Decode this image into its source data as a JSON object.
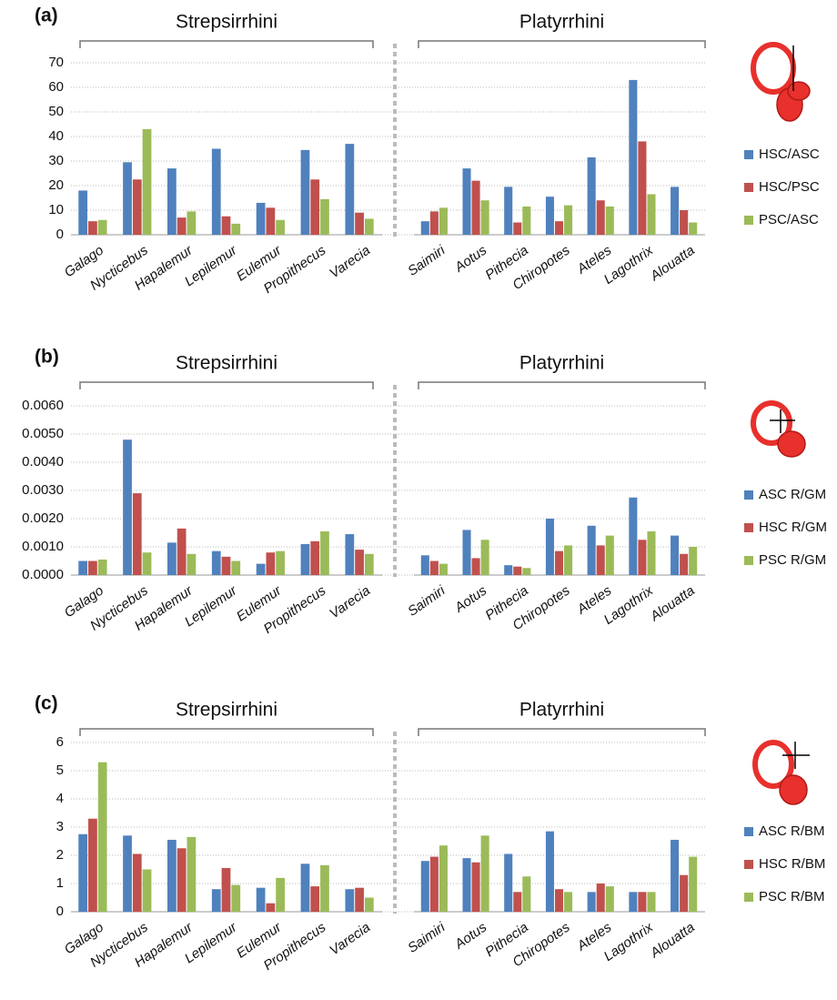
{
  "chart_data": [
    {
      "type": "bar",
      "panel_label": "(a)",
      "groups": [
        "Strepsirrhini",
        "Platyrrhini"
      ],
      "categories": [
        "Galago",
        "Nycticebus",
        "Hapalemur",
        "Lepilemur",
        "Eulemur",
        "Propithecus",
        "Varecia",
        "Saimiri",
        "Aotus",
        "Pithecia",
        "Chiropotes",
        "Ateles",
        "Lagothrix",
        "Alouatta"
      ],
      "series": [
        {
          "name": "HSC/ASC",
          "color": "#4f81bd",
          "values": [
            18,
            29.5,
            27,
            35,
            13,
            34.5,
            37,
            5.5,
            27,
            19.5,
            15.5,
            31.5,
            63,
            19.5
          ]
        },
        {
          "name": "HSC/PSC",
          "color": "#c0504d",
          "values": [
            5.5,
            22.5,
            7,
            7.5,
            11,
            22.5,
            9,
            9.5,
            22,
            5,
            5.5,
            14,
            38,
            10
          ]
        },
        {
          "name": "PSC/ASC",
          "color": "#9bbb59",
          "values": [
            6,
            43,
            9.5,
            4.5,
            6,
            14.5,
            6.5,
            11,
            14,
            11.5,
            12,
            11.5,
            16.5,
            5
          ]
        }
      ],
      "ylim": [
        0,
        70
      ],
      "yticks": [
        0,
        10,
        20,
        30,
        40,
        50,
        60,
        70
      ],
      "grid": true
    },
    {
      "type": "bar",
      "panel_label": "(b)",
      "groups": [
        "Strepsirrhini",
        "Platyrrhini"
      ],
      "categories": [
        "Galago",
        "Nycticebus",
        "Hapalemur",
        "Lepilemur",
        "Eulemur",
        "Propithecus",
        "Varecia",
        "Saimiri",
        "Aotus",
        "Pithecia",
        "Chiropotes",
        "Ateles",
        "Lagothrix",
        "Alouatta"
      ],
      "series": [
        {
          "name": "ASC R/GM",
          "color": "#4f81bd",
          "values": [
            0.0005,
            0.0048,
            0.00115,
            0.00085,
            0.0004,
            0.0011,
            0.00145,
            0.0007,
            0.0016,
            0.00035,
            0.002,
            0.00175,
            0.00275,
            0.0014
          ]
        },
        {
          "name": "HSC R/GM",
          "color": "#c0504d",
          "values": [
            0.0005,
            0.0029,
            0.00165,
            0.00065,
            0.0008,
            0.0012,
            0.0009,
            0.0005,
            0.0006,
            0.0003,
            0.00085,
            0.00105,
            0.00125,
            0.00075
          ]
        },
        {
          "name": "PSC R/GM",
          "color": "#9bbb59",
          "values": [
            0.00055,
            0.0008,
            0.00075,
            0.0005,
            0.00085,
            0.00155,
            0.00075,
            0.0004,
            0.00125,
            0.00025,
            0.00105,
            0.0014,
            0.00155,
            0.001
          ]
        }
      ],
      "ylim": [
        0,
        0.006
      ],
      "yticks": [
        {
          "value": 0,
          "label": "0.0000"
        },
        {
          "value": 0.001,
          "label": "0.0010"
        },
        {
          "value": 0.002,
          "label": "0.0020"
        },
        {
          "value": 0.003,
          "label": "0.0030"
        },
        {
          "value": 0.004,
          "label": "0.0040"
        },
        {
          "value": 0.005,
          "label": "0.0050"
        },
        {
          "value": 0.006,
          "label": "0.0060"
        }
      ],
      "grid": true
    },
    {
      "type": "bar",
      "panel_label": "(c)",
      "groups": [
        "Strepsirrhini",
        "Platyrrhini"
      ],
      "categories": [
        "Galago",
        "Nycticebus",
        "Hapalemur",
        "Lepilemur",
        "Eulemur",
        "Propithecus",
        "Varecia",
        "Saimiri",
        "Aotus",
        "Pithecia",
        "Chiropotes",
        "Ateles",
        "Lagothrix",
        "Alouatta"
      ],
      "series": [
        {
          "name": "ASC R/BM",
          "color": "#4f81bd",
          "values": [
            2.75,
            2.7,
            2.55,
            0.8,
            0.85,
            1.7,
            0.8,
            1.8,
            1.9,
            2.05,
            2.85,
            0.7,
            0.7,
            2.55
          ]
        },
        {
          "name": "HSC R/BM",
          "color": "#c0504d",
          "values": [
            3.3,
            2.05,
            2.25,
            1.55,
            0.3,
            0.9,
            0.85,
            1.95,
            1.75,
            0.7,
            0.8,
            1.0,
            0.7,
            1.3
          ]
        },
        {
          "name": "PSC R/BM",
          "color": "#9bbb59",
          "values": [
            5.3,
            1.5,
            2.65,
            0.95,
            1.2,
            1.65,
            0.5,
            2.35,
            2.7,
            1.25,
            0.7,
            0.9,
            0.7,
            1.95
          ]
        }
      ],
      "ylim": [
        0,
        6
      ],
      "yticks": [
        0,
        1,
        2,
        3,
        4,
        5,
        6
      ],
      "grid": true
    }
  ]
}
